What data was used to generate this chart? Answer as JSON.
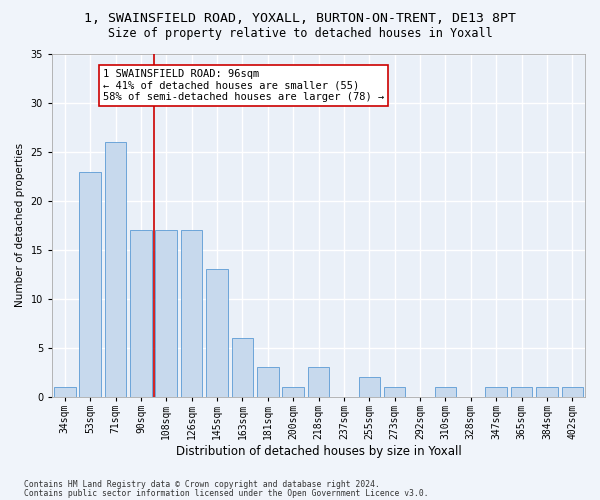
{
  "title1": "1, SWAINSFIELD ROAD, YOXALL, BURTON-ON-TRENT, DE13 8PT",
  "title2": "Size of property relative to detached houses in Yoxall",
  "xlabel": "Distribution of detached houses by size in Yoxall",
  "ylabel": "Number of detached properties",
  "footer1": "Contains HM Land Registry data © Crown copyright and database right 2024.",
  "footer2": "Contains public sector information licensed under the Open Government Licence v3.0.",
  "bar_labels": [
    "34sqm",
    "53sqm",
    "71sqm",
    "90sqm",
    "108sqm",
    "126sqm",
    "145sqm",
    "163sqm",
    "181sqm",
    "200sqm",
    "218sqm",
    "237sqm",
    "255sqm",
    "273sqm",
    "292sqm",
    "310sqm",
    "328sqm",
    "347sqm",
    "365sqm",
    "384sqm",
    "402sqm"
  ],
  "bar_values": [
    1,
    23,
    26,
    17,
    17,
    17,
    13,
    6,
    3,
    1,
    3,
    0,
    2,
    1,
    0,
    1,
    0,
    1,
    1,
    1,
    1
  ],
  "bar_color": "#c7d9ed",
  "bar_edge_color": "#5b9bd5",
  "background_color": "#eaf0f8",
  "fig_background_color": "#f0f4fa",
  "annotation_text": "1 SWAINSFIELD ROAD: 96sqm\n← 41% of detached houses are smaller (55)\n58% of semi-detached houses are larger (78) →",
  "red_line_x": 3.5,
  "annotation_box_color": "#ffffff",
  "annotation_box_edge": "#cc0000",
  "red_line_color": "#cc0000",
  "ylim": [
    0,
    35
  ],
  "yticks": [
    0,
    5,
    10,
    15,
    20,
    25,
    30,
    35
  ],
  "grid_color": "#ffffff",
  "title1_fontsize": 9.5,
  "title2_fontsize": 8.5,
  "xlabel_fontsize": 8.5,
  "ylabel_fontsize": 7.5,
  "tick_fontsize": 7,
  "annotation_fontsize": 7.5,
  "footer_fontsize": 5.8
}
